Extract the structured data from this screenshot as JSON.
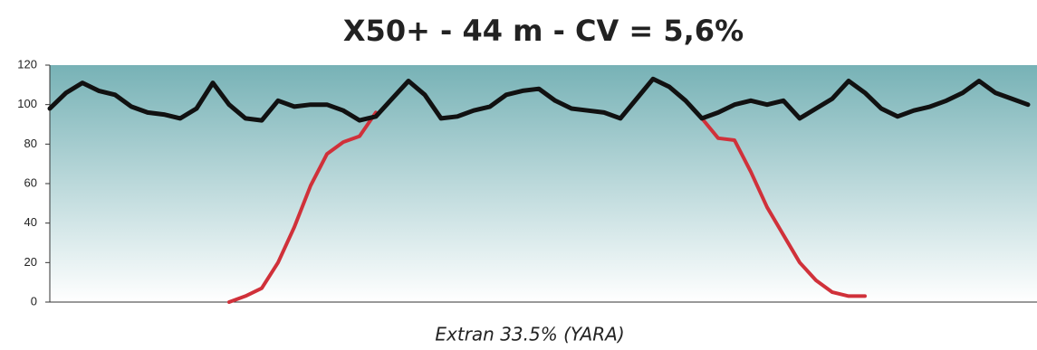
{
  "chart_data": {
    "type": "line",
    "title": "X50+ - 44 m - CV = 5,6%",
    "x_label": "Extran 33.5% (YARA)",
    "ylim": [
      0,
      120
    ],
    "yticks": [
      0,
      20,
      40,
      60,
      80,
      100,
      120
    ],
    "series": [
      {
        "color": "#111111",
        "values": [
          98,
          106,
          111,
          107,
          105,
          99,
          96,
          95,
          93,
          98,
          111,
          100,
          93,
          92,
          102,
          99,
          100,
          100,
          97,
          92,
          94,
          103,
          112,
          105,
          93,
          94,
          97,
          99,
          105,
          107,
          108,
          102,
          98,
          97,
          96,
          93,
          103,
          113,
          109,
          102,
          93,
          96,
          100,
          102,
          100,
          102,
          93,
          98,
          103,
          112,
          106,
          98,
          94,
          97,
          99,
          102,
          106,
          112,
          106,
          103,
          100
        ]
      },
      {
        "color": "#d0313a",
        "values": [
          null,
          null,
          null,
          null,
          null,
          null,
          null,
          null,
          null,
          null,
          null,
          0,
          3,
          7,
          20,
          38,
          59,
          75,
          81,
          84,
          96,
          null,
          null,
          null,
          null,
          null,
          null,
          null,
          null,
          null,
          null,
          null,
          null,
          null,
          null,
          null,
          null,
          null,
          null,
          null,
          93,
          83,
          82,
          66,
          48,
          34,
          20,
          11,
          5,
          3,
          3,
          null,
          null,
          null,
          null,
          null,
          null,
          null,
          null,
          null,
          null
        ]
      }
    ]
  }
}
